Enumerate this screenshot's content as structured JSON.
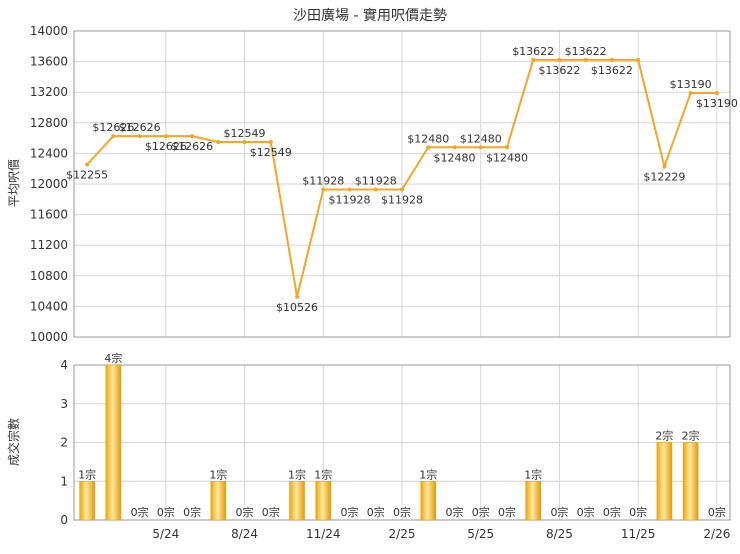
{
  "chart_data": [
    {
      "type": "line",
      "title": "沙田廣場 - 實用呎價走勢",
      "ylabel": "平均呎價",
      "ylim": [
        10000,
        14000
      ],
      "yticks": [
        10000,
        10400,
        10800,
        11200,
        11600,
        12000,
        12400,
        12800,
        13200,
        13600,
        14000
      ],
      "x": [
        "2/24",
        "3/24",
        "4/24",
        "5/24",
        "6/24",
        "7/24",
        "8/24",
        "9/24",
        "10/24",
        "11/24",
        "12/24",
        "1/25",
        "2/25",
        "3/25",
        "4/25",
        "5/25",
        "6/25",
        "7/25",
        "8/25",
        "9/25",
        "10/25",
        "11/25",
        "12/25",
        "1/26",
        "2/26"
      ],
      "values": [
        12255,
        12626,
        12626,
        12626,
        12626,
        12549,
        12549,
        12549,
        10526,
        11928,
        11928,
        11928,
        11928,
        12480,
        12480,
        12480,
        12480,
        13622,
        13622,
        13622,
        13622,
        13622,
        12229,
        13190,
        13190
      ],
      "labels": [
        "$12255",
        "$12626",
        "$12626",
        "$12626",
        "$12626",
        "$12549",
        "$12549",
        "$10526",
        "$11928",
        "$11928",
        "$11928",
        "$11928",
        "$12480",
        "$12480",
        "$12480",
        "$12480",
        "$13622",
        "$13622",
        "$13622",
        "$13622",
        "$12229",
        "$13190",
        "$13190"
      ],
      "label_points": [
        0,
        1,
        2,
        3,
        4,
        6,
        7,
        8,
        9,
        10,
        11,
        12,
        13,
        14,
        15,
        16,
        17,
        18,
        19,
        20,
        22,
        23,
        24
      ],
      "line_color": "#f5a623",
      "grid": true
    },
    {
      "type": "bar",
      "ylabel": "成交宗數",
      "ylim": [
        0,
        4
      ],
      "yticks": [
        0,
        1,
        2,
        3,
        4
      ],
      "categories": [
        "2/24",
        "3/24",
        "4/24",
        "5/24",
        "6/24",
        "7/24",
        "8/24",
        "9/24",
        "10/24",
        "11/24",
        "12/24",
        "1/25",
        "2/25",
        "3/25",
        "4/25",
        "5/25",
        "6/25",
        "7/25",
        "8/25",
        "9/25",
        "10/25",
        "11/25",
        "12/25",
        "1/26",
        "2/26"
      ],
      "values": [
        1,
        4,
        0,
        0,
        0,
        1,
        0,
        0,
        1,
        1,
        0,
        0,
        0,
        1,
        0,
        0,
        0,
        1,
        0,
        0,
        0,
        0,
        2,
        2,
        0
      ],
      "bar_labels": [
        "1宗",
        "4宗",
        "0宗",
        "0宗",
        "0宗",
        "1宗",
        "0宗",
        "0宗",
        "1宗",
        "1宗",
        "0宗",
        "0宗",
        "0宗",
        "1宗",
        "0宗",
        "0宗",
        "0宗",
        "1宗",
        "0宗",
        "0宗",
        "0宗",
        "0宗",
        "2宗",
        "2宗",
        "0宗"
      ],
      "x_tick_labels": [
        "5/24",
        "8/24",
        "11/24",
        "2/25",
        "5/25",
        "8/25",
        "11/25",
        "2/26"
      ],
      "x_tick_indices": [
        3,
        6,
        9,
        12,
        15,
        18,
        21,
        24
      ],
      "bar_color": "#f5b52a",
      "grid": true
    }
  ]
}
